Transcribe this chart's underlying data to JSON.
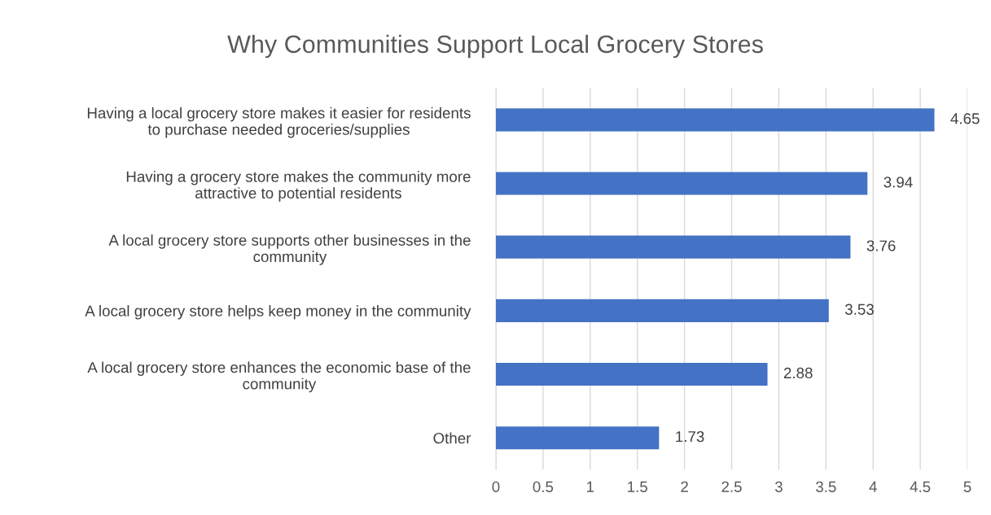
{
  "chart_data": {
    "type": "bar",
    "orientation": "horizontal",
    "title": "Why Communities Support Local Grocery Stores",
    "categories": [
      "Having a local grocery store makes it easier for residents\nto purchase needed groceries/supplies",
      "Having a grocery store makes the community more\nattractive to potential residents",
      "A local grocery store supports other businesses in the\ncommunity",
      "A local grocery store helps keep money in the community",
      "A local grocery store enhances the economic base of the\ncommunity",
      "Other"
    ],
    "values": [
      4.65,
      3.94,
      3.76,
      3.53,
      2.88,
      1.73
    ],
    "color": "#4472c4",
    "xlim": [
      0,
      5
    ],
    "xticks": [
      0,
      0.5,
      1,
      1.5,
      2,
      2.5,
      3,
      3.5,
      4,
      4.5,
      5
    ],
    "grid": "x",
    "data_labels": true
  }
}
